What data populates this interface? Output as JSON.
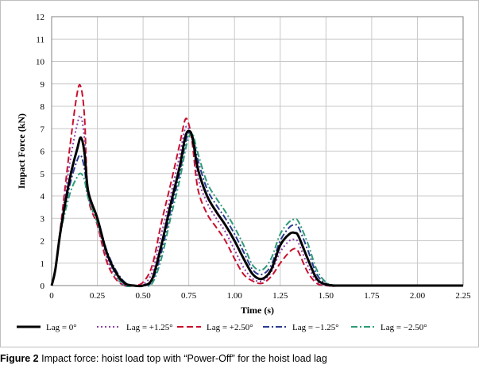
{
  "caption": {
    "label": "Figure 2",
    "text": "Impact force: hoist load top with “Power-Off” for the hoist load lag"
  },
  "chart_data": {
    "type": "line",
    "title": "",
    "xlabel": "Time (s)",
    "ylabel": "Impact Force (kN)",
    "xlim": [
      0,
      2.25
    ],
    "ylim": [
      0,
      12
    ],
    "xticks": [
      0,
      0.25,
      0.5,
      0.75,
      1.0,
      1.25,
      1.5,
      1.75,
      2.0,
      2.25
    ],
    "xtick_labels": [
      "0",
      "0.25",
      "0.50",
      "0.75",
      "1.00",
      "1.25",
      "1.50",
      "1.75",
      "2.00",
      "2.25"
    ],
    "yticks": [
      0,
      1,
      2,
      3,
      4,
      5,
      6,
      7,
      8,
      9,
      10,
      11,
      12
    ],
    "ytick_labels": [
      "0",
      "1",
      "2",
      "3",
      "4",
      "5",
      "6",
      "7",
      "8",
      "9",
      "10",
      "11",
      "12"
    ],
    "grid": true,
    "legend_position": "bottom",
    "series": [
      {
        "name": "Lag = 0°",
        "color": "#000000",
        "style": "solid",
        "x": [
          0,
          0.02,
          0.05,
          0.1,
          0.14,
          0.16,
          0.18,
          0.2,
          0.25,
          0.3,
          0.35,
          0.4,
          0.45,
          0.5,
          0.55,
          0.6,
          0.65,
          0.7,
          0.73,
          0.75,
          0.77,
          0.8,
          0.85,
          0.9,
          0.95,
          1.0,
          1.05,
          1.1,
          1.15,
          1.2,
          1.25,
          1.3,
          1.33,
          1.35,
          1.4,
          1.45,
          1.5,
          1.55,
          1.6,
          2.25
        ],
        "y": [
          0,
          0.7,
          2.5,
          4.8,
          6.1,
          6.6,
          5.9,
          4.2,
          3.0,
          1.5,
          0.6,
          0.1,
          0.0,
          0.0,
          0.3,
          1.8,
          3.6,
          5.3,
          6.6,
          6.9,
          6.6,
          5.2,
          4.0,
          3.3,
          2.7,
          2.0,
          1.2,
          0.5,
          0.3,
          0.7,
          1.8,
          2.3,
          2.35,
          2.2,
          1.2,
          0.3,
          0.05,
          0.0,
          0.0,
          0.0
        ]
      },
      {
        "name": "Lag = +1.25°",
        "color": "#8b3fa8",
        "style": "dotted",
        "x": [
          0,
          0.02,
          0.05,
          0.1,
          0.14,
          0.16,
          0.18,
          0.2,
          0.25,
          0.3,
          0.35,
          0.4,
          0.45,
          0.5,
          0.55,
          0.6,
          0.65,
          0.7,
          0.73,
          0.75,
          0.77,
          0.8,
          0.85,
          0.9,
          0.95,
          1.0,
          1.05,
          1.1,
          1.15,
          1.2,
          1.25,
          1.3,
          1.33,
          1.35,
          1.4,
          1.45,
          1.5,
          1.55,
          1.6,
          2.25
        ],
        "y": [
          0,
          0.7,
          2.6,
          5.5,
          7.2,
          7.55,
          6.5,
          4.0,
          2.8,
          1.3,
          0.4,
          0.0,
          0.0,
          0.05,
          0.6,
          2.3,
          4.0,
          5.8,
          7.0,
          7.0,
          6.5,
          4.8,
          3.7,
          3.0,
          2.4,
          1.6,
          0.8,
          0.3,
          0.2,
          0.6,
          1.5,
          2.0,
          2.05,
          1.9,
          0.9,
          0.2,
          0.0,
          0.0,
          0.0,
          0.0
        ]
      },
      {
        "name": "Lag = +2.50°",
        "color": "#c8102e",
        "style": "dashed",
        "x": [
          0,
          0.02,
          0.05,
          0.1,
          0.14,
          0.16,
          0.18,
          0.2,
          0.25,
          0.3,
          0.35,
          0.4,
          0.45,
          0.5,
          0.55,
          0.6,
          0.65,
          0.7,
          0.73,
          0.75,
          0.77,
          0.8,
          0.85,
          0.9,
          0.95,
          1.0,
          1.05,
          1.1,
          1.15,
          1.2,
          1.25,
          1.3,
          1.33,
          1.35,
          1.4,
          1.45,
          1.5,
          1.55,
          1.6,
          2.25
        ],
        "y": [
          0,
          0.7,
          2.7,
          6.2,
          8.6,
          8.85,
          7.5,
          4.0,
          2.7,
          1.1,
          0.3,
          0.0,
          0.0,
          0.15,
          0.9,
          2.8,
          4.5,
          6.3,
          7.4,
          7.2,
          6.3,
          4.3,
          3.2,
          2.6,
          2.0,
          1.2,
          0.5,
          0.2,
          0.1,
          0.4,
          1.0,
          1.5,
          1.65,
          1.5,
          0.6,
          0.1,
          0.0,
          0.0,
          0.0,
          0.0
        ]
      },
      {
        "name": "Lag = −1.25°",
        "color": "#2b3a8f",
        "style": "dashdot",
        "x": [
          0,
          0.02,
          0.05,
          0.1,
          0.14,
          0.16,
          0.18,
          0.2,
          0.25,
          0.3,
          0.35,
          0.4,
          0.45,
          0.5,
          0.55,
          0.6,
          0.65,
          0.7,
          0.73,
          0.75,
          0.77,
          0.8,
          0.85,
          0.9,
          0.95,
          1.0,
          1.05,
          1.1,
          1.15,
          1.2,
          1.25,
          1.3,
          1.33,
          1.35,
          1.4,
          1.45,
          1.5,
          1.55,
          1.6,
          2.25
        ],
        "y": [
          0,
          0.7,
          2.5,
          4.5,
          5.6,
          5.8,
          5.2,
          4.0,
          3.0,
          1.6,
          0.7,
          0.15,
          0.0,
          0.0,
          0.2,
          1.5,
          3.3,
          5.0,
          6.3,
          6.8,
          6.7,
          5.6,
          4.3,
          3.6,
          3.0,
          2.3,
          1.5,
          0.7,
          0.5,
          0.9,
          2.0,
          2.6,
          2.7,
          2.6,
          1.6,
          0.5,
          0.1,
          0.0,
          0.0,
          0.0
        ]
      },
      {
        "name": "Lag = −2.50°",
        "color": "#2e9a78",
        "style": "dashdot",
        "x": [
          0,
          0.02,
          0.05,
          0.1,
          0.14,
          0.16,
          0.18,
          0.2,
          0.25,
          0.3,
          0.35,
          0.4,
          0.45,
          0.5,
          0.55,
          0.6,
          0.65,
          0.7,
          0.73,
          0.75,
          0.77,
          0.8,
          0.85,
          0.9,
          0.95,
          1.0,
          1.05,
          1.1,
          1.15,
          1.2,
          1.25,
          1.3,
          1.33,
          1.35,
          1.4,
          1.45,
          1.5,
          1.55,
          1.6,
          2.25
        ],
        "y": [
          0,
          0.7,
          2.4,
          4.1,
          4.85,
          5.0,
          4.7,
          3.9,
          2.8,
          1.5,
          0.5,
          0.0,
          0.0,
          0.0,
          0.1,
          1.2,
          3.0,
          4.7,
          6.0,
          6.6,
          6.8,
          5.9,
          4.6,
          3.9,
          3.3,
          2.6,
          1.8,
          0.9,
          0.7,
          1.2,
          2.3,
          2.85,
          2.95,
          2.85,
          1.9,
          0.7,
          0.15,
          0.0,
          0.0,
          0.0
        ]
      }
    ]
  }
}
